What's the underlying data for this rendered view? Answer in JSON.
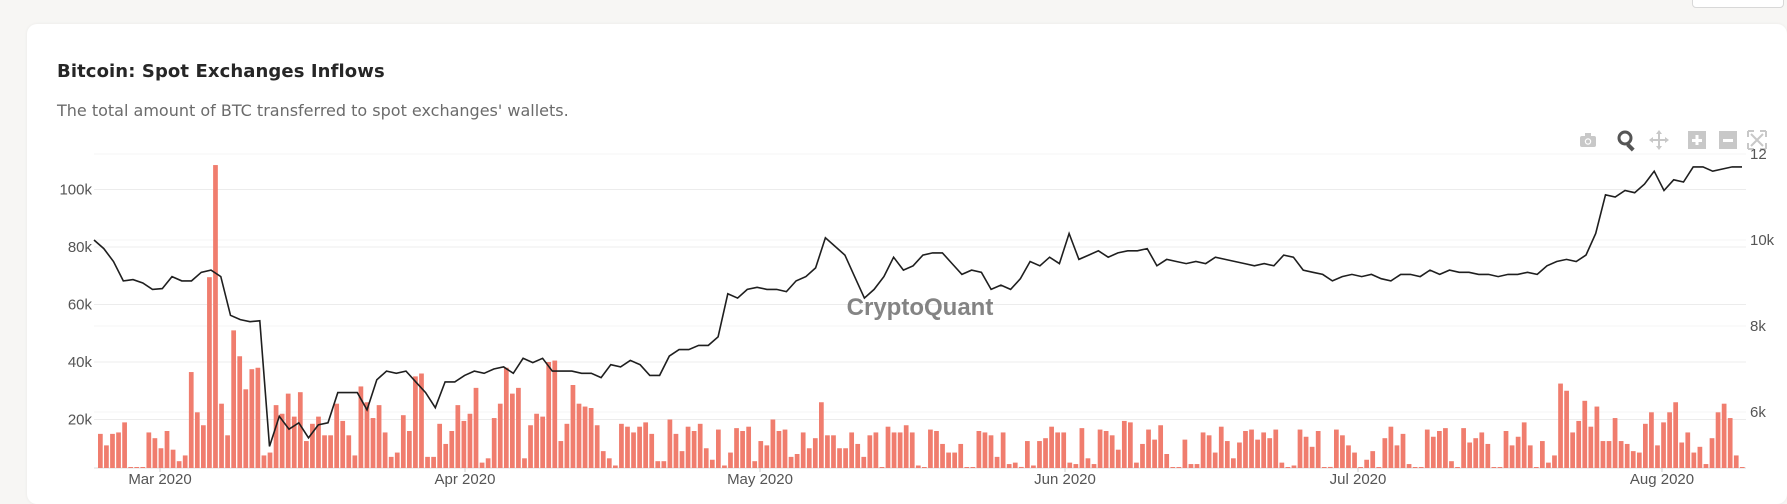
{
  "header": {
    "title": "Bitcoin: Spot Exchanges Inflows",
    "subtitle": "The total amount of BTC transferred to spot exchanges' wallets."
  },
  "watermark": "CryptoQuant",
  "modebar": {
    "icons": [
      "camera-icon",
      "zoom-icon",
      "pan-icon",
      "zoom-in-icon",
      "zoom-out-icon",
      "autoscale-icon"
    ]
  },
  "colors": {
    "bar": "#f07d6e",
    "line": "#1f1f1f",
    "grid": "#ececec",
    "axis_text": "#555555",
    "watermark": "#6f6f6f"
  },
  "chart_data": {
    "type": "bar",
    "title": "",
    "xlabel": "",
    "ylabel": "",
    "x_start": "2020-02-21",
    "x_ticks": [
      "Mar 2020",
      "Apr 2020",
      "May 2020",
      "Jun 2020",
      "Jul 2020",
      "Aug 2020"
    ],
    "y_left": {
      "ticks": [
        "20k",
        "40k",
        "60k",
        "80k",
        "100k"
      ],
      "range": [
        0,
        115000
      ]
    },
    "y_right": {
      "ticks": [
        "6k",
        "8k",
        "10k",
        "12"
      ],
      "range": [
        4800,
        12100
      ]
    },
    "grid": true,
    "series": [
      {
        "type": "bar",
        "axis": "left",
        "values": [
          15000,
          11000,
          15000,
          15500,
          19000,
          3000,
          2000,
          1000,
          15500,
          13500,
          10000,
          16000,
          9500,
          5500,
          7500,
          36500,
          22500,
          18000,
          69500,
          108500,
          25500,
          14500,
          51000,
          42000,
          30500,
          37500,
          38000,
          7500,
          8500,
          25000,
          22000,
          29000,
          21000,
          29500,
          12500,
          18500,
          21000,
          14500,
          14500,
          25500,
          19500,
          14500,
          7500,
          31500,
          26000,
          20500,
          25000,
          15500,
          7000,
          8500,
          21500,
          16000,
          35000,
          36000,
          7000,
          7000,
          18500,
          11500,
          16000,
          25000,
          19500,
          22000,
          31000,
          5000,
          6500,
          20500,
          25500,
          38000,
          29000,
          31000,
          6500,
          18000,
          22000,
          21000,
          40000,
          40500,
          12500,
          18500,
          32000,
          25500,
          24500,
          24000,
          18000,
          9000,
          6500,
          4000,
          18500,
          17500,
          15500,
          17500,
          19000,
          15000,
          5500,
          5500,
          20000,
          15000,
          9000,
          17500,
          16000,
          18500,
          10000,
          6000,
          16500,
          4000,
          8500,
          17000,
          16000,
          17500,
          5500,
          12500,
          11000,
          20000,
          16000,
          16500,
          7000,
          8000,
          15500,
          10000,
          13500,
          26000,
          14500,
          14500,
          10000,
          10000,
          15500,
          11500,
          7000,
          14500,
          15500,
          3000,
          17500,
          15500,
          15500,
          18000,
          15500,
          4000,
          2500,
          16500,
          16000,
          11500,
          8500,
          8500,
          11500,
          2000,
          2000,
          16000,
          15500,
          14500,
          7000,
          15500,
          4500,
          5000,
          3500,
          12500,
          4000,
          12500,
          13500,
          17500,
          15500,
          15500,
          5000,
          4500,
          17000,
          6500,
          4500,
          16500,
          16000,
          14500,
          9500,
          19500,
          19000,
          5000,
          11500,
          16500,
          13000,
          18000,
          8000,
          3000,
          2500,
          13000,
          4500,
          4500,
          15500,
          14500,
          8500,
          17500,
          12500,
          6500,
          12000,
          16000,
          16500,
          13000,
          15500,
          13500,
          16500,
          5000,
          1500,
          4000,
          16500,
          14000,
          10500,
          16000,
          2500,
          3500,
          16500,
          14500,
          11000,
          8500,
          2500,
          6000,
          9000,
          1500,
          13500,
          17500,
          11000,
          15000,
          4500,
          1000,
          2500,
          16500,
          14000,
          16000,
          17000,
          5500,
          1500,
          17000,
          12000,
          13500,
          15500,
          11500,
          3000,
          2500,
          16000,
          11000,
          14000,
          19000,
          11000,
          1500,
          12500,
          5000,
          7500,
          32500,
          30000,
          15500,
          19500,
          26500,
          17500,
          24500,
          12500,
          12500,
          20500,
          12500,
          11500,
          9000,
          8500,
          18500,
          22500,
          11000,
          19000,
          22500,
          26000,
          12000,
          15500,
          8500,
          10500,
          4500,
          13500,
          22500,
          25500,
          20500,
          7500,
          3000
        ]
      },
      {
        "type": "line",
        "axis": "right",
        "name": "",
        "values": [
          10000,
          9800,
          9500,
          9050,
          9080,
          9000,
          8850,
          8870,
          9150,
          9050,
          9050,
          9250,
          9300,
          9150,
          8250,
          8150,
          8100,
          8120,
          5200,
          5900,
          5600,
          5750,
          5400,
          5700,
          5750,
          6450,
          6450,
          6450,
          6050,
          6750,
          6950,
          6900,
          6950,
          6700,
          6450,
          6100,
          6700,
          6700,
          6850,
          6950,
          6900,
          7000,
          7050,
          6900,
          7250,
          7150,
          7250,
          6950,
          6950,
          6950,
          6900,
          6900,
          6800,
          7100,
          7050,
          7200,
          7100,
          6850,
          6850,
          7300,
          7450,
          7450,
          7550,
          7550,
          7750,
          8750,
          8650,
          8850,
          8900,
          8850,
          8850,
          8800,
          9050,
          9150,
          9350,
          10050,
          9850,
          9650,
          9150,
          8650,
          8850,
          9150,
          9600,
          9300,
          9400,
          9650,
          9700,
          9700,
          9450,
          9200,
          9300,
          9250,
          8850,
          8950,
          8850,
          9100,
          9500,
          9400,
          9600,
          9450,
          10150,
          9550,
          9650,
          9750,
          9600,
          9700,
          9750,
          9750,
          9800,
          9400,
          9550,
          9500,
          9450,
          9500,
          9450,
          9600,
          9550,
          9500,
          9450,
          9400,
          9450,
          9400,
          9650,
          9600,
          9300,
          9250,
          9200,
          9050,
          9150,
          9200,
          9150,
          9200,
          9100,
          9050,
          9200,
          9200,
          9150,
          9300,
          9200,
          9300,
          9250,
          9250,
          9200,
          9200,
          9150,
          9200,
          9200,
          9250,
          9200,
          9400,
          9500,
          9550,
          9500,
          9650,
          10150,
          11050,
          11000,
          11150,
          11100,
          11300,
          11600,
          11150,
          11400,
          11350,
          11700,
          11700,
          11600,
          11650,
          11700,
          11700
        ]
      }
    ]
  }
}
